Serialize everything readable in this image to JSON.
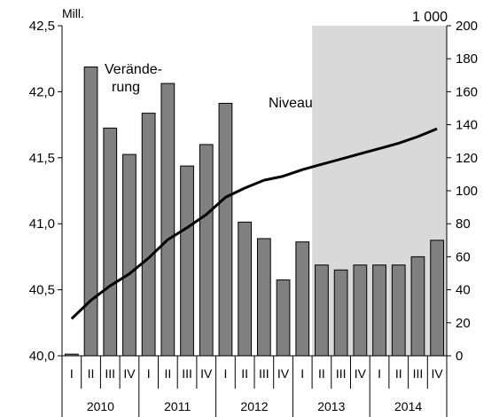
{
  "chart_data": {
    "type": "bar",
    "title": "",
    "left_axis_unit": "Mill.",
    "right_axis_unit": "1 000",
    "left_axis": {
      "ylim": [
        40.0,
        42.5
      ],
      "ticks": [
        "40,0",
        "40,5",
        "41,0",
        "41,5",
        "42,0",
        "42,5"
      ]
    },
    "right_axis": {
      "ylim": [
        0,
        200
      ],
      "ticks": [
        "0",
        "20",
        "40",
        "60",
        "80",
        "100",
        "120",
        "140",
        "160",
        "180",
        "200"
      ]
    },
    "quarters": [
      "I",
      "II",
      "III",
      "IV",
      "I",
      "II",
      "III",
      "IV",
      "I",
      "II",
      "III",
      "IV",
      "I",
      "II",
      "III",
      "IV",
      "I",
      "II",
      "III",
      "IV"
    ],
    "years": [
      "2010",
      "2011",
      "2012",
      "2013",
      "2014"
    ],
    "forecast_shading": {
      "from_index": 13,
      "to_index": 19,
      "color": "#d9d9d9"
    },
    "series": [
      {
        "name": "Veränderung",
        "kind": "bar",
        "axis": "right",
        "color": "#808080",
        "values": [
          1,
          175,
          138,
          122,
          147,
          165,
          115,
          128,
          153,
          81,
          71,
          46,
          69,
          55,
          52,
          55,
          55,
          55,
          60,
          70
        ]
      },
      {
        "name": "Niveau",
        "kind": "line",
        "axis": "left",
        "color": "#000000",
        "values": [
          40.28,
          40.42,
          40.53,
          40.62,
          40.74,
          40.88,
          40.97,
          41.07,
          41.2,
          41.27,
          41.33,
          41.36,
          41.41,
          41.45,
          41.49,
          41.53,
          41.57,
          41.61,
          41.66,
          41.72
        ]
      }
    ],
    "annotations": [
      {
        "text_lines": [
          "Verände-",
          "rung"
        ],
        "series": "Veränderung"
      },
      {
        "text_lines": [
          "Niveau"
        ],
        "series": "Niveau"
      }
    ],
    "grid": false
  }
}
